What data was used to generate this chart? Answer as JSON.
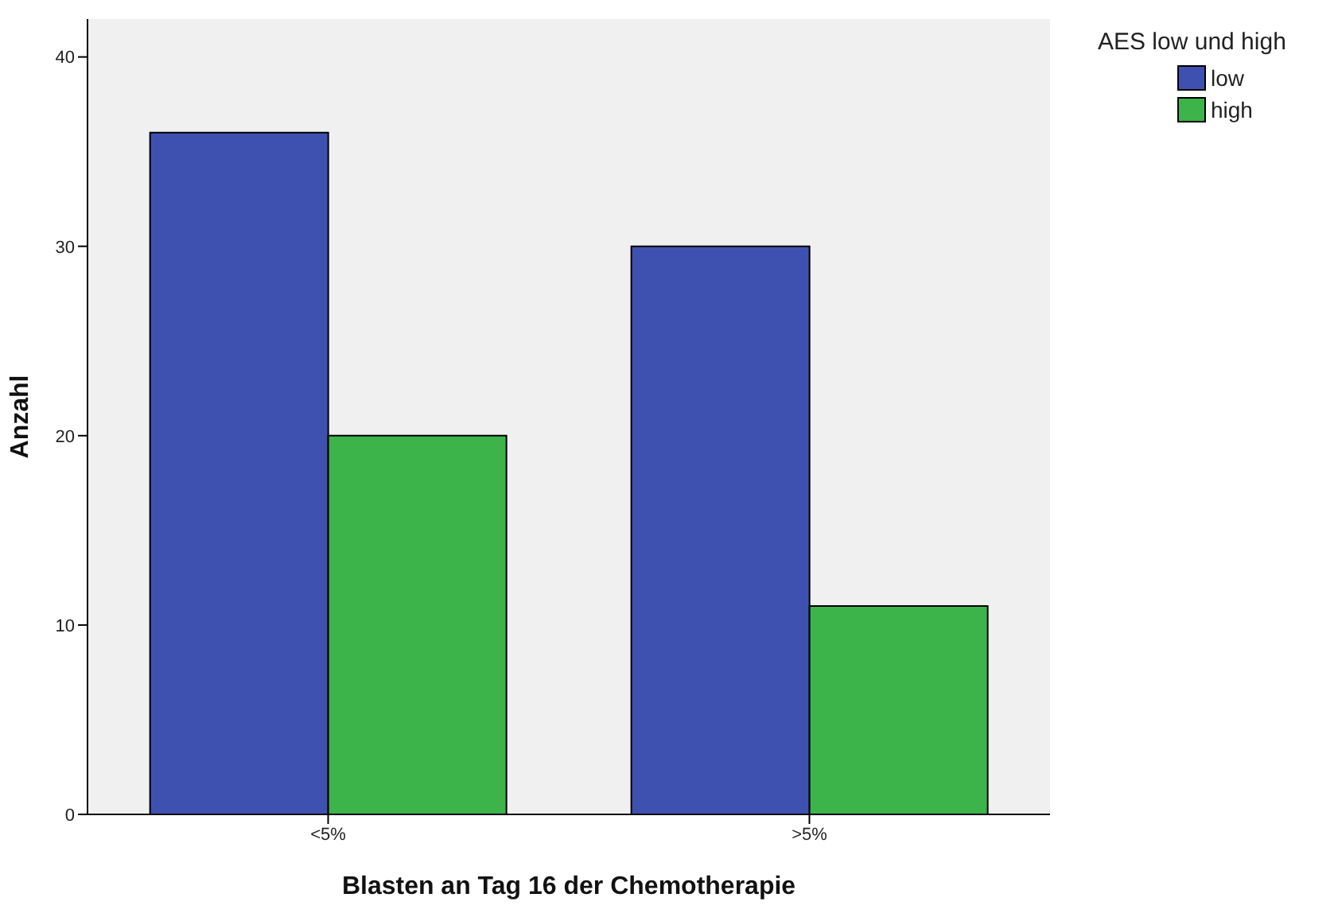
{
  "chart_data": {
    "type": "bar",
    "xlabel": "Blasten an Tag 16 der Chemotherapie",
    "ylabel": "Anzahl",
    "legend_title": "AES low und high",
    "categories": [
      "<5%",
      ">5%"
    ],
    "series": [
      {
        "name": "low",
        "color": "#3f51b0",
        "values": [
          36,
          30
        ]
      },
      {
        "name": "high",
        "color": "#3cb44a",
        "values": [
          20,
          11
        ]
      }
    ],
    "ylim": [
      0,
      42
    ],
    "yticks": [
      0,
      10,
      20,
      30,
      40
    ],
    "grid": false,
    "legend": "top right"
  }
}
